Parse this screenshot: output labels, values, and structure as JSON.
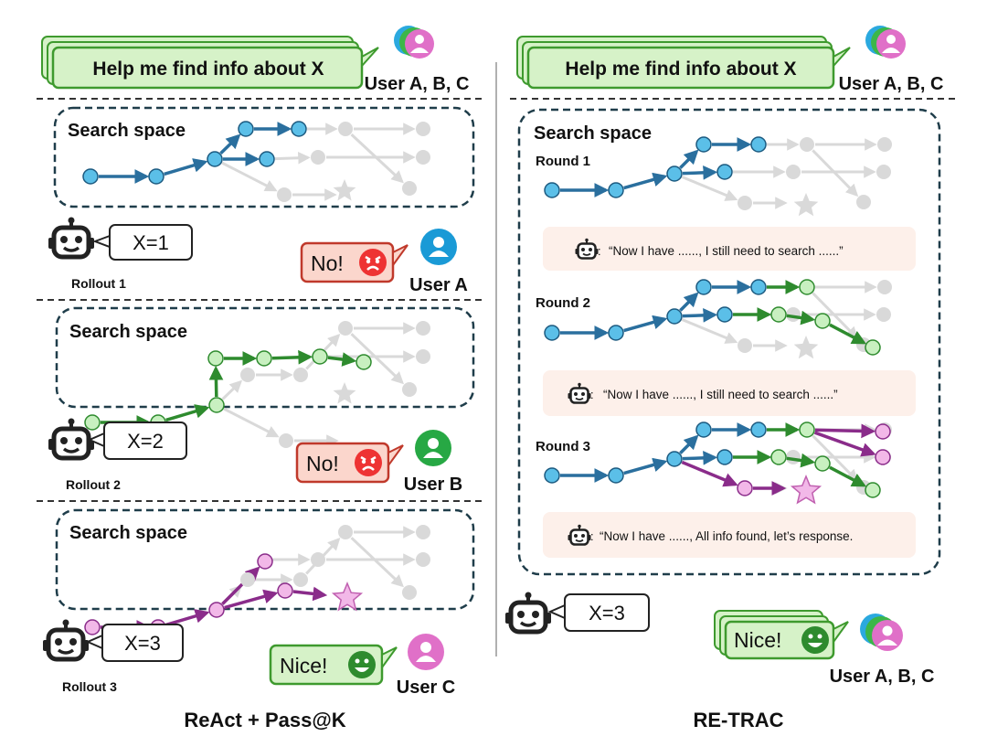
{
  "left": {
    "prompt": "Help me find info about X",
    "users_label": "User A, B, C",
    "search_label": "Search space",
    "rollouts": [
      {
        "label": "Rollout 1",
        "answer": "X=1",
        "feedback": "No!",
        "user": "User A",
        "user_color": "#1a9ad6"
      },
      {
        "label": "Rollout 2",
        "answer": "X=2",
        "feedback": "No!",
        "user": "User B",
        "user_color": "#27a844"
      },
      {
        "label": "Rollout 3",
        "answer": "X=3",
        "feedback": "Nice!",
        "user": "User C",
        "user_color": "#e070c8"
      }
    ],
    "caption": "ReAct + Pass@K"
  },
  "right": {
    "prompt": "Help me find info about X",
    "users_label": "User A, B, C",
    "search_label": "Search space",
    "rounds": [
      {
        "label": "Round 1",
        "note": "“Now I have ......,  I still need to search ......”"
      },
      {
        "label": "Round 2",
        "note": "“Now I have ......,  I still need to search ......”"
      },
      {
        "label": "Round 3",
        "note": "“Now I have ......,  All info found, let’s response."
      }
    ],
    "answer": "X=3",
    "feedback": "Nice!",
    "caption": "RE-TRAC"
  },
  "colors": {
    "blue": "#2a6f9e",
    "blue_fill": "#5bbfe8",
    "green": "#2e8b2e",
    "green_fill": "#c8f0c0",
    "purple": "#8a2c8a",
    "purple_fill": "#f2b8e8",
    "grey": "#d9d9d9",
    "bubble_green": "#d6f2c8",
    "bubble_red": "#fbd6cc",
    "note_bg": "#fdf0ea",
    "dashed_border": "#1f3d4a"
  },
  "icons": [
    "robot-icon",
    "user-icon",
    "angry-face-icon",
    "smile-face-icon",
    "star-icon"
  ]
}
